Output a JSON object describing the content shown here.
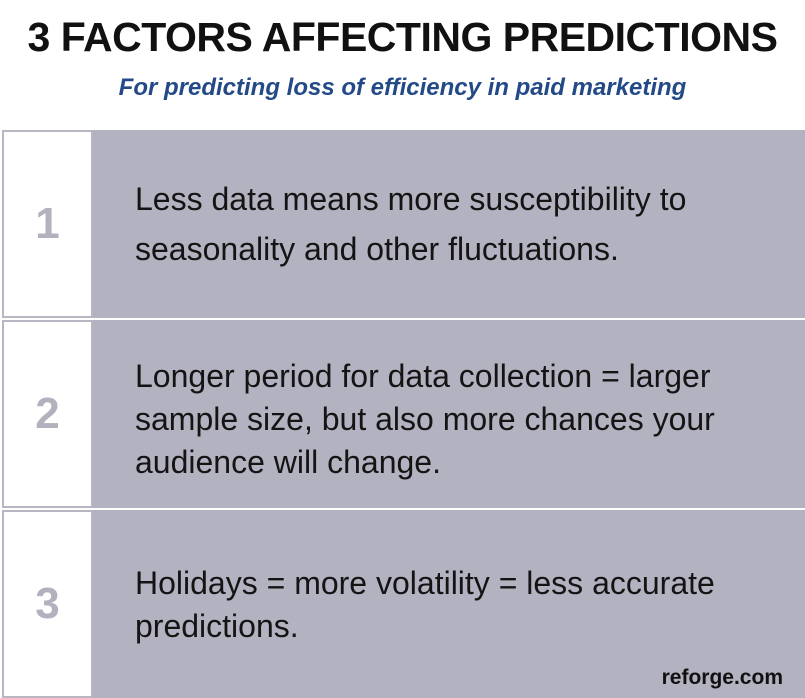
{
  "header": {
    "title": "3 FACTORS AFFECTING PREDICTIONS",
    "subtitle": "For predicting loss of efficiency in paid marketing"
  },
  "factors": [
    {
      "number": "1",
      "text": "Less data means more susceptibility to seasonality and other fluctuations."
    },
    {
      "number": "2",
      "text": "Longer period for data collection = larger sample size, but also more chances your audience will change."
    },
    {
      "number": "3",
      "text": "Holidays = more volatility = less accurate predictions."
    }
  ],
  "footer": {
    "brand": "reforge.com"
  },
  "colors": {
    "title": "#111111",
    "subtitle": "#234a86",
    "panel": "#b3b2c0",
    "number": "#b2b1bd",
    "border": "#b7b6c2"
  }
}
